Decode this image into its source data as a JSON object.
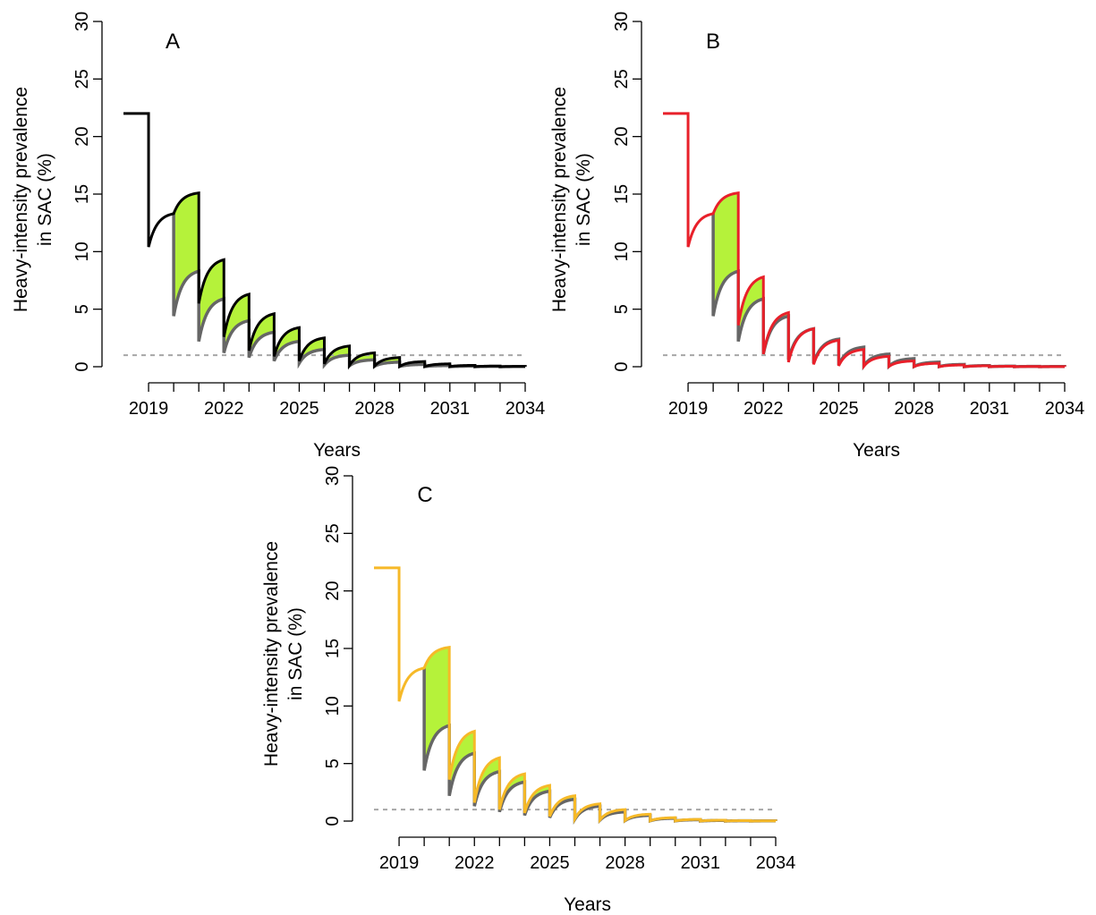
{
  "chart_data": [
    {
      "type": "line",
      "panel_label": "A",
      "xlabel": "Years",
      "ylabel_lines": [
        "Heavy-intensity prevalence",
        "in SAC (%)"
      ],
      "ylim": [
        0,
        30
      ],
      "yticks": [
        0,
        5,
        10,
        15,
        20,
        25,
        30
      ],
      "xlim": [
        2018,
        2034
      ],
      "xticks_minor": [
        2019,
        2020,
        2021,
        2022,
        2023,
        2024,
        2025,
        2026,
        2027,
        2028,
        2029,
        2030,
        2031,
        2032,
        2033,
        2034
      ],
      "xtick_labels": [
        "2019",
        "2022",
        "2025",
        "2028",
        "2031",
        "2034"
      ],
      "threshold": 1,
      "colors": {
        "main": "#000000",
        "baseline": "#666666",
        "fill": "#b5f23a",
        "threshold": "#a6a6a6"
      },
      "series": [
        {
          "role": "main",
          "segments": [
            {
              "x0": 2020,
              "start": 13.3,
              "end": 15.1,
              "drop": 5.5
            },
            {
              "x0": 2021,
              "start": 5.5,
              "end": 9.3,
              "drop": 2.6
            },
            {
              "x0": 2022,
              "start": 2.6,
              "end": 6.3,
              "drop": 1.4
            },
            {
              "x0": 2023,
              "start": 1.4,
              "end": 4.6,
              "drop": 0.9
            },
            {
              "x0": 2024,
              "start": 0.9,
              "end": 3.4,
              "drop": 0.5
            },
            {
              "x0": 2025,
              "start": 0.5,
              "end": 2.5,
              "drop": 0.25
            },
            {
              "x0": 2026,
              "start": 0.25,
              "end": 1.8,
              "drop": 0.12
            },
            {
              "x0": 2027,
              "start": 0.12,
              "end": 1.2,
              "drop": 0.06
            },
            {
              "x0": 2028,
              "start": 0.06,
              "end": 0.8,
              "drop": 0.03
            },
            {
              "x0": 2029,
              "start": 0.03,
              "end": 0.45,
              "drop": 0.02
            },
            {
              "x0": 2030,
              "start": 0.02,
              "end": 0.25,
              "drop": 0.01
            },
            {
              "x0": 2031,
              "start": 0.01,
              "end": 0.12,
              "drop": 0.01
            },
            {
              "x0": 2032,
              "start": 0.01,
              "end": 0.06,
              "drop": 0.0
            },
            {
              "x0": 2033,
              "start": 0.0,
              "end": 0.03,
              "drop": 0.0
            }
          ]
        },
        {
          "role": "baseline",
          "segments": [
            {
              "x0": 2020,
              "start": 4.4,
              "end": 8.3,
              "drop": 2.2
            },
            {
              "x0": 2021,
              "start": 2.2,
              "end": 5.9,
              "drop": 1.2
            },
            {
              "x0": 2022,
              "start": 1.2,
              "end": 4.0,
              "drop": 0.8
            },
            {
              "x0": 2023,
              "start": 0.8,
              "end": 3.0,
              "drop": 0.5
            },
            {
              "x0": 2024,
              "start": 0.5,
              "end": 2.2,
              "drop": 0.3
            },
            {
              "x0": 2025,
              "start": 0.3,
              "end": 1.5,
              "drop": 0.15
            },
            {
              "x0": 2026,
              "start": 0.15,
              "end": 1.0,
              "drop": 0.08
            },
            {
              "x0": 2027,
              "start": 0.08,
              "end": 0.6,
              "drop": 0.04
            },
            {
              "x0": 2028,
              "start": 0.04,
              "end": 0.4,
              "drop": 0.02
            },
            {
              "x0": 2029,
              "start": 0.02,
              "end": 0.2,
              "drop": 0.01
            },
            {
              "x0": 2030,
              "start": 0.01,
              "end": 0.1,
              "drop": 0.0
            },
            {
              "x0": 2031,
              "start": 0.0,
              "end": 0.05,
              "drop": 0.0
            },
            {
              "x0": 2032,
              "start": 0.0,
              "end": 0.03,
              "drop": 0.0
            },
            {
              "x0": 2033,
              "start": 0.0,
              "end": 0.02,
              "drop": 0.0
            }
          ]
        }
      ],
      "pre_mda": {
        "x": [
          2018,
          2019
        ],
        "value": 22,
        "after_drop": 10.4,
        "recover_to": 13.3
      }
    },
    {
      "type": "line",
      "panel_label": "B",
      "xlabel": "Years",
      "ylabel_lines": [
        "Heavy-intensity prevalence",
        "in SAC (%)"
      ],
      "ylim": [
        0,
        30
      ],
      "yticks": [
        0,
        5,
        10,
        15,
        20,
        25,
        30
      ],
      "xlim": [
        2018,
        2034
      ],
      "xticks_minor": [
        2019,
        2020,
        2021,
        2022,
        2023,
        2024,
        2025,
        2026,
        2027,
        2028,
        2029,
        2030,
        2031,
        2032,
        2033,
        2034
      ],
      "xtick_labels": [
        "2019",
        "2022",
        "2025",
        "2028",
        "2031",
        "2034"
      ],
      "threshold": 1,
      "colors": {
        "main": "#e8202a",
        "baseline": "#666666",
        "fill": "#b5f23a",
        "threshold": "#a6a6a6"
      },
      "series": [
        {
          "role": "main",
          "segments": [
            {
              "x0": 2020,
              "start": 13.3,
              "end": 15.1,
              "drop": 3.6
            },
            {
              "x0": 2021,
              "start": 3.6,
              "end": 7.8,
              "drop": 1.1
            },
            {
              "x0": 2022,
              "start": 1.1,
              "end": 4.7,
              "drop": 0.4
            },
            {
              "x0": 2023,
              "start": 0.4,
              "end": 3.3,
              "drop": 0.2
            },
            {
              "x0": 2024,
              "start": 0.2,
              "end": 2.3,
              "drop": 0.08
            },
            {
              "x0": 2025,
              "start": 0.08,
              "end": 1.5,
              "drop": 0.04
            },
            {
              "x0": 2026,
              "start": 0.04,
              "end": 0.9,
              "drop": 0.02
            },
            {
              "x0": 2027,
              "start": 0.02,
              "end": 0.5,
              "drop": 0.01
            },
            {
              "x0": 2028,
              "start": 0.01,
              "end": 0.3,
              "drop": 0.0
            },
            {
              "x0": 2029,
              "start": 0.0,
              "end": 0.15,
              "drop": 0.0
            },
            {
              "x0": 2030,
              "start": 0.0,
              "end": 0.08,
              "drop": 0.0
            },
            {
              "x0": 2031,
              "start": 0.0,
              "end": 0.04,
              "drop": 0.0
            },
            {
              "x0": 2032,
              "start": 0.0,
              "end": 0.02,
              "drop": 0.0
            },
            {
              "x0": 2033,
              "start": 0.0,
              "end": 0.01,
              "drop": 0.0
            }
          ]
        },
        {
          "role": "baseline",
          "segments": [
            {
              "x0": 2020,
              "start": 4.4,
              "end": 8.3,
              "drop": 2.2
            },
            {
              "x0": 2021,
              "start": 2.2,
              "end": 5.9,
              "drop": 1.1
            },
            {
              "x0": 2022,
              "start": 1.1,
              "end": 4.4,
              "drop": 0.6
            },
            {
              "x0": 2023,
              "start": 0.6,
              "end": 3.3,
              "drop": 0.3
            },
            {
              "x0": 2024,
              "start": 0.3,
              "end": 2.4,
              "drop": 0.15
            },
            {
              "x0": 2025,
              "start": 0.15,
              "end": 1.7,
              "drop": 0.08
            },
            {
              "x0": 2026,
              "start": 0.08,
              "end": 1.1,
              "drop": 0.04
            },
            {
              "x0": 2027,
              "start": 0.04,
              "end": 0.7,
              "drop": 0.02
            },
            {
              "x0": 2028,
              "start": 0.02,
              "end": 0.4,
              "drop": 0.01
            },
            {
              "x0": 2029,
              "start": 0.01,
              "end": 0.2,
              "drop": 0.0
            },
            {
              "x0": 2030,
              "start": 0.0,
              "end": 0.1,
              "drop": 0.0
            },
            {
              "x0": 2031,
              "start": 0.0,
              "end": 0.05,
              "drop": 0.0
            },
            {
              "x0": 2032,
              "start": 0.0,
              "end": 0.03,
              "drop": 0.0
            },
            {
              "x0": 2033,
              "start": 0.0,
              "end": 0.02,
              "drop": 0.0
            }
          ]
        }
      ],
      "pre_mda": {
        "x": [
          2018,
          2019
        ],
        "value": 22,
        "after_drop": 10.4,
        "recover_to": 13.3
      }
    },
    {
      "type": "line",
      "panel_label": "C",
      "xlabel": "Years",
      "ylabel_lines": [
        "Heavy-intensity prevalence",
        "in SAC (%)"
      ],
      "ylim": [
        0,
        30
      ],
      "yticks": [
        0,
        5,
        10,
        15,
        20,
        25,
        30
      ],
      "xlim": [
        2018,
        2034
      ],
      "xticks_minor": [
        2019,
        2020,
        2021,
        2022,
        2023,
        2024,
        2025,
        2026,
        2027,
        2028,
        2029,
        2030,
        2031,
        2032,
        2033,
        2034
      ],
      "xtick_labels": [
        "2019",
        "2022",
        "2025",
        "2028",
        "2031",
        "2034"
      ],
      "threshold": 1,
      "colors": {
        "main": "#f6b928",
        "baseline": "#666666",
        "fill": "#b5f23a",
        "threshold": "#a6a6a6"
      },
      "series": [
        {
          "role": "main",
          "segments": [
            {
              "x0": 2020,
              "start": 13.3,
              "end": 15.1,
              "drop": 3.6
            },
            {
              "x0": 2021,
              "start": 3.6,
              "end": 7.8,
              "drop": 1.6
            },
            {
              "x0": 2022,
              "start": 1.6,
              "end": 5.5,
              "drop": 1.0
            },
            {
              "x0": 2023,
              "start": 1.0,
              "end": 4.1,
              "drop": 0.7
            },
            {
              "x0": 2024,
              "start": 0.7,
              "end": 3.1,
              "drop": 0.4
            },
            {
              "x0": 2025,
              "start": 0.4,
              "end": 2.2,
              "drop": 0.2
            },
            {
              "x0": 2026,
              "start": 0.2,
              "end": 1.5,
              "drop": 0.1
            },
            {
              "x0": 2027,
              "start": 0.1,
              "end": 1.0,
              "drop": 0.05
            },
            {
              "x0": 2028,
              "start": 0.05,
              "end": 0.6,
              "drop": 0.02
            },
            {
              "x0": 2029,
              "start": 0.02,
              "end": 0.3,
              "drop": 0.01
            },
            {
              "x0": 2030,
              "start": 0.01,
              "end": 0.15,
              "drop": 0.0
            },
            {
              "x0": 2031,
              "start": 0.0,
              "end": 0.08,
              "drop": 0.0
            },
            {
              "x0": 2032,
              "start": 0.0,
              "end": 0.04,
              "drop": 0.0
            },
            {
              "x0": 2033,
              "start": 0.0,
              "end": 0.02,
              "drop": 0.0
            }
          ]
        },
        {
          "role": "baseline",
          "segments": [
            {
              "x0": 2020,
              "start": 4.4,
              "end": 8.3,
              "drop": 2.2
            },
            {
              "x0": 2021,
              "start": 2.2,
              "end": 5.9,
              "drop": 1.3
            },
            {
              "x0": 2022,
              "start": 1.3,
              "end": 4.3,
              "drop": 0.8
            },
            {
              "x0": 2023,
              "start": 0.8,
              "end": 3.4,
              "drop": 0.5
            },
            {
              "x0": 2024,
              "start": 0.5,
              "end": 2.6,
              "drop": 0.3
            },
            {
              "x0": 2025,
              "start": 0.3,
              "end": 1.9,
              "drop": 0.15
            },
            {
              "x0": 2026,
              "start": 0.15,
              "end": 1.3,
              "drop": 0.08
            },
            {
              "x0": 2027,
              "start": 0.08,
              "end": 0.8,
              "drop": 0.04
            },
            {
              "x0": 2028,
              "start": 0.04,
              "end": 0.5,
              "drop": 0.02
            },
            {
              "x0": 2029,
              "start": 0.02,
              "end": 0.25,
              "drop": 0.01
            },
            {
              "x0": 2030,
              "start": 0.01,
              "end": 0.12,
              "drop": 0.0
            },
            {
              "x0": 2031,
              "start": 0.0,
              "end": 0.06,
              "drop": 0.0
            },
            {
              "x0": 2032,
              "start": 0.0,
              "end": 0.03,
              "drop": 0.0
            },
            {
              "x0": 2033,
              "start": 0.0,
              "end": 0.02,
              "drop": 0.0
            }
          ]
        }
      ],
      "pre_mda": {
        "x": [
          2018,
          2019
        ],
        "value": 22,
        "after_drop": 10.4,
        "recover_to": 13.3
      }
    }
  ]
}
